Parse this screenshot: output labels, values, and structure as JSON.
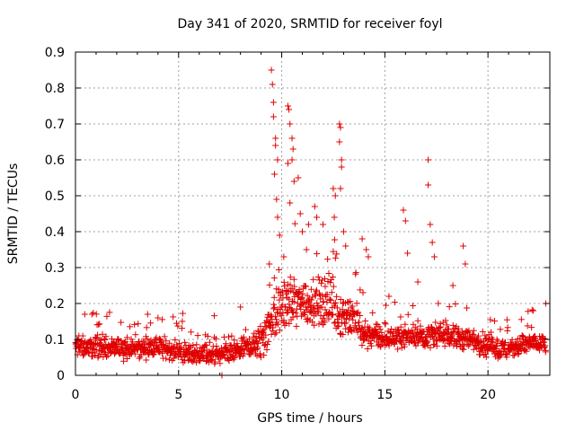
{
  "chart_data": {
    "type": "scatter",
    "title": "Day 341 of 2020, SRMTID for receiver foyl",
    "xlabel": "GPS time / hours",
    "ylabel": "SRMTID / TECUs",
    "xlim": [
      0,
      23
    ],
    "ylim": [
      0,
      0.9
    ],
    "xticks": [
      0,
      5,
      10,
      15,
      20
    ],
    "xtick_labels": [
      "0",
      "5",
      "10",
      "15",
      "20"
    ],
    "yticks": [
      0,
      0.1,
      0.2,
      0.3,
      0.4,
      0.5,
      0.6,
      0.7,
      0.8,
      0.9
    ],
    "ytick_labels": [
      "0",
      "0.1",
      "0.2",
      "0.3",
      "0.4",
      "0.5",
      "0.6",
      "0.7",
      "0.8",
      "0.9"
    ],
    "grid": true,
    "marker": "+",
    "marker_color": "#e00000",
    "series": [
      {
        "name": "SRMTID",
        "baseline": [
          [
            0.0,
            0.08
          ],
          [
            1.0,
            0.08
          ],
          [
            2.0,
            0.075
          ],
          [
            3.0,
            0.075
          ],
          [
            4.0,
            0.08
          ],
          [
            5.0,
            0.065
          ],
          [
            6.0,
            0.06
          ],
          [
            7.0,
            0.055
          ],
          [
            7.5,
            0.06
          ],
          [
            8.5,
            0.08
          ],
          [
            9.0,
            0.09
          ],
          [
            9.5,
            0.16
          ],
          [
            10.0,
            0.19
          ],
          [
            11.0,
            0.2
          ],
          [
            12.0,
            0.2
          ],
          [
            13.0,
            0.17
          ],
          [
            14.0,
            0.12
          ],
          [
            15.0,
            0.1
          ],
          [
            16.0,
            0.11
          ],
          [
            17.0,
            0.11
          ],
          [
            18.0,
            0.11
          ],
          [
            19.0,
            0.1
          ],
          [
            20.0,
            0.08
          ],
          [
            21.0,
            0.07
          ],
          [
            22.0,
            0.09
          ],
          [
            22.8,
            0.09
          ]
        ],
        "spread": [
          [
            0.0,
            0.04
          ],
          [
            8.5,
            0.04
          ],
          [
            9.3,
            0.09
          ],
          [
            11.0,
            0.1
          ],
          [
            12.5,
            0.1
          ],
          [
            13.5,
            0.07
          ],
          [
            15.0,
            0.04
          ],
          [
            19.0,
            0.05
          ],
          [
            22.8,
            0.04
          ]
        ],
        "outliers": [
          [
            9.5,
            0.85
          ],
          [
            9.55,
            0.81
          ],
          [
            9.6,
            0.76
          ],
          [
            9.6,
            0.72
          ],
          [
            9.7,
            0.66
          ],
          [
            9.7,
            0.64
          ],
          [
            9.65,
            0.56
          ],
          [
            9.8,
            0.6
          ],
          [
            9.75,
            0.49
          ],
          [
            9.8,
            0.44
          ],
          [
            9.9,
            0.39
          ],
          [
            10.3,
            0.75
          ],
          [
            10.35,
            0.74
          ],
          [
            10.4,
            0.7
          ],
          [
            10.5,
            0.66
          ],
          [
            10.55,
            0.63
          ],
          [
            10.5,
            0.6
          ],
          [
            10.6,
            0.54
          ],
          [
            10.3,
            0.59
          ],
          [
            10.4,
            0.48
          ],
          [
            10.8,
            0.55
          ],
          [
            10.9,
            0.45
          ],
          [
            11.0,
            0.4
          ],
          [
            11.3,
            0.42
          ],
          [
            11.6,
            0.47
          ],
          [
            11.7,
            0.44
          ],
          [
            12.0,
            0.42
          ],
          [
            12.5,
            0.52
          ],
          [
            12.6,
            0.5
          ],
          [
            12.55,
            0.44
          ],
          [
            12.8,
            0.7
          ],
          [
            12.85,
            0.69
          ],
          [
            12.8,
            0.65
          ],
          [
            12.9,
            0.6
          ],
          [
            12.9,
            0.58
          ],
          [
            12.85,
            0.52
          ],
          [
            13.0,
            0.4
          ],
          [
            13.1,
            0.36
          ],
          [
            13.9,
            0.38
          ],
          [
            14.1,
            0.35
          ],
          [
            14.2,
            0.33
          ],
          [
            15.9,
            0.46
          ],
          [
            16.0,
            0.43
          ],
          [
            16.1,
            0.34
          ],
          [
            17.1,
            0.6
          ],
          [
            17.1,
            0.53
          ],
          [
            17.2,
            0.42
          ],
          [
            17.3,
            0.37
          ],
          [
            17.4,
            0.33
          ],
          [
            18.8,
            0.36
          ],
          [
            18.9,
            0.31
          ],
          [
            0.45,
            0.17
          ],
          [
            0.8,
            0.17
          ],
          [
            3.5,
            0.17
          ],
          [
            4.0,
            0.16
          ],
          [
            8.0,
            0.19
          ],
          [
            7.1,
            0.0
          ],
          [
            22.8,
            0.2
          ],
          [
            22.2,
            0.18
          ],
          [
            9.4,
            0.31
          ],
          [
            10.1,
            0.33
          ],
          [
            11.2,
            0.35
          ],
          [
            15.2,
            0.22
          ],
          [
            16.6,
            0.26
          ],
          [
            18.3,
            0.25
          ]
        ]
      }
    ]
  }
}
